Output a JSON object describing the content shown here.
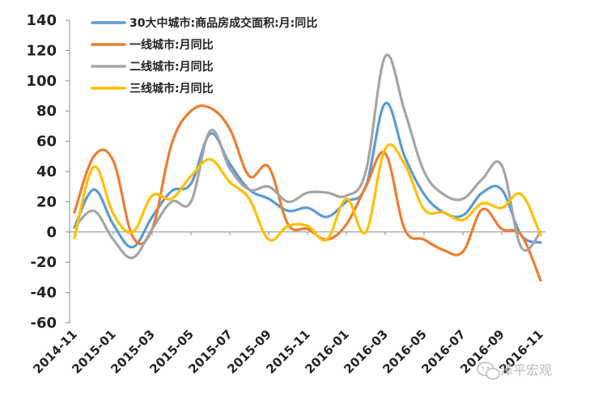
{
  "chart_data": {
    "type": "line",
    "x": [
      "2014-11",
      "2014-12",
      "2015-01",
      "2015-02",
      "2015-03",
      "2015-04",
      "2015-05",
      "2015-06",
      "2015-07",
      "2015-08",
      "2015-09",
      "2015-10",
      "2015-11",
      "2015-12",
      "2016-01",
      "2016-02",
      "2016-03",
      "2016-04",
      "2016-05",
      "2016-06",
      "2016-07",
      "2016-08",
      "2016-09",
      "2016-10",
      "2016-11"
    ],
    "tick_labels": [
      "2014-11",
      "2015-01",
      "2015-03",
      "2015-05",
      "2015-07",
      "2015-09",
      "2015-11",
      "2016-01",
      "2016-03",
      "2016-05",
      "2016-07",
      "2016-09",
      "2016-11"
    ],
    "ylim": [
      -60,
      140
    ],
    "yticks": [
      -60,
      -40,
      -20,
      0,
      20,
      40,
      60,
      80,
      100,
      120,
      140
    ],
    "legend_position": "top-left",
    "series": [
      {
        "name": "30大中城市:商品房成交面积:月:同比",
        "color": "#5b9bd5",
        "values": [
          3,
          28,
          5,
          -10,
          10,
          27,
          32,
          65,
          45,
          28,
          22,
          14,
          16,
          10,
          20,
          30,
          85,
          50,
          25,
          13,
          11,
          26,
          28,
          -2,
          -7
        ]
      },
      {
        "name": "一线城市:月同比",
        "color": "#ed7d31",
        "values": [
          13,
          50,
          47,
          -3,
          2,
          58,
          80,
          82,
          68,
          37,
          43,
          5,
          2,
          -5,
          5,
          30,
          52,
          2,
          -5,
          -12,
          -13,
          15,
          2,
          -2,
          -32
        ]
      },
      {
        "name": "二线城市:月同比",
        "color": "#a5a5a5",
        "values": [
          3,
          14,
          -5,
          -17,
          2,
          20,
          20,
          67,
          42,
          28,
          30,
          20,
          26,
          26,
          24,
          40,
          116,
          80,
          40,
          25,
          22,
          35,
          44,
          -10,
          0
        ]
      },
      {
        "name": "三线城市:月同比",
        "color": "#ffc000",
        "values": [
          -4,
          43,
          12,
          0,
          24,
          22,
          37,
          48,
          33,
          22,
          -5,
          4,
          4,
          -5,
          22,
          0,
          55,
          45,
          15,
          13,
          8,
          19,
          16,
          25,
          -2
        ]
      }
    ]
  },
  "watermark": {
    "text": "泽平宏观",
    "icon": "wechat-icon"
  }
}
